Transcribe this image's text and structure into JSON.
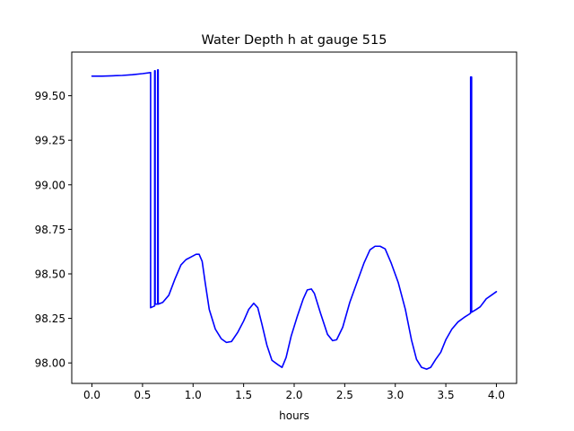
{
  "chart_data": {
    "type": "line",
    "title": "Water Depth h at gauge 515",
    "xlabel": "hours",
    "ylabel": "",
    "xlim": [
      -0.2,
      4.2
    ],
    "ylim": [
      97.885,
      99.745
    ],
    "xticks": [
      0.0,
      0.5,
      1.0,
      1.5,
      2.0,
      2.5,
      3.0,
      3.5,
      4.0
    ],
    "xtick_labels": [
      "0.0",
      "0.5",
      "1.0",
      "1.5",
      "2.0",
      "2.5",
      "3.0",
      "3.5",
      "4.0"
    ],
    "yticks": [
      98.0,
      98.25,
      98.5,
      98.75,
      99.0,
      99.25,
      99.5
    ],
    "ytick_labels": [
      "98.00",
      "98.25",
      "98.50",
      "98.75",
      "99.00",
      "99.25",
      "99.50"
    ],
    "grid": false,
    "series": [
      {
        "color": "#0000ff",
        "points": [
          [
            0.0,
            99.61
          ],
          [
            0.1,
            99.61
          ],
          [
            0.2,
            99.612
          ],
          [
            0.3,
            99.614
          ],
          [
            0.4,
            99.618
          ],
          [
            0.5,
            99.624
          ],
          [
            0.58,
            99.63
          ],
          [
            0.58,
            98.31
          ],
          [
            0.62,
            98.32
          ],
          [
            0.62,
            99.64
          ],
          [
            0.625,
            99.64
          ],
          [
            0.625,
            98.33
          ],
          [
            0.65,
            98.33
          ],
          [
            0.65,
            99.645
          ],
          [
            0.655,
            99.645
          ],
          [
            0.655,
            98.33
          ],
          [
            0.7,
            98.34
          ],
          [
            0.76,
            98.38
          ],
          [
            0.82,
            98.47
          ],
          [
            0.88,
            98.55
          ],
          [
            0.93,
            98.58
          ],
          [
            0.98,
            98.595
          ],
          [
            1.03,
            98.61
          ],
          [
            1.06,
            98.61
          ],
          [
            1.09,
            98.57
          ],
          [
            1.12,
            98.45
          ],
          [
            1.16,
            98.3
          ],
          [
            1.22,
            98.19
          ],
          [
            1.28,
            98.135
          ],
          [
            1.33,
            98.115
          ],
          [
            1.38,
            98.12
          ],
          [
            1.44,
            98.17
          ],
          [
            1.5,
            98.235
          ],
          [
            1.55,
            98.3
          ],
          [
            1.6,
            98.335
          ],
          [
            1.64,
            98.31
          ],
          [
            1.68,
            98.22
          ],
          [
            1.73,
            98.1
          ],
          [
            1.78,
            98.015
          ],
          [
            1.84,
            97.99
          ],
          [
            1.88,
            97.975
          ],
          [
            1.92,
            98.03
          ],
          [
            1.97,
            98.15
          ],
          [
            2.03,
            98.26
          ],
          [
            2.09,
            98.36
          ],
          [
            2.13,
            98.41
          ],
          [
            2.17,
            98.415
          ],
          [
            2.2,
            98.39
          ],
          [
            2.26,
            98.28
          ],
          [
            2.33,
            98.16
          ],
          [
            2.38,
            98.125
          ],
          [
            2.42,
            98.13
          ],
          [
            2.48,
            98.2
          ],
          [
            2.55,
            98.34
          ],
          [
            2.62,
            98.45
          ],
          [
            2.69,
            98.56
          ],
          [
            2.75,
            98.635
          ],
          [
            2.8,
            98.655
          ],
          [
            2.85,
            98.655
          ],
          [
            2.9,
            98.64
          ],
          [
            2.96,
            98.56
          ],
          [
            3.03,
            98.45
          ],
          [
            3.1,
            98.3
          ],
          [
            3.16,
            98.13
          ],
          [
            3.21,
            98.02
          ],
          [
            3.26,
            97.975
          ],
          [
            3.31,
            97.965
          ],
          [
            3.35,
            97.975
          ],
          [
            3.4,
            98.02
          ],
          [
            3.45,
            98.06
          ],
          [
            3.5,
            98.13
          ],
          [
            3.56,
            98.19
          ],
          [
            3.62,
            98.23
          ],
          [
            3.68,
            98.255
          ],
          [
            3.735,
            98.275
          ],
          [
            3.745,
            98.28
          ],
          [
            3.745,
            99.605
          ],
          [
            3.755,
            99.605
          ],
          [
            3.755,
            98.285
          ],
          [
            3.8,
            98.3
          ],
          [
            3.84,
            98.315
          ],
          [
            3.88,
            98.345
          ],
          [
            3.9,
            98.36
          ],
          [
            3.95,
            98.38
          ],
          [
            4.0,
            98.4
          ]
        ]
      }
    ]
  }
}
